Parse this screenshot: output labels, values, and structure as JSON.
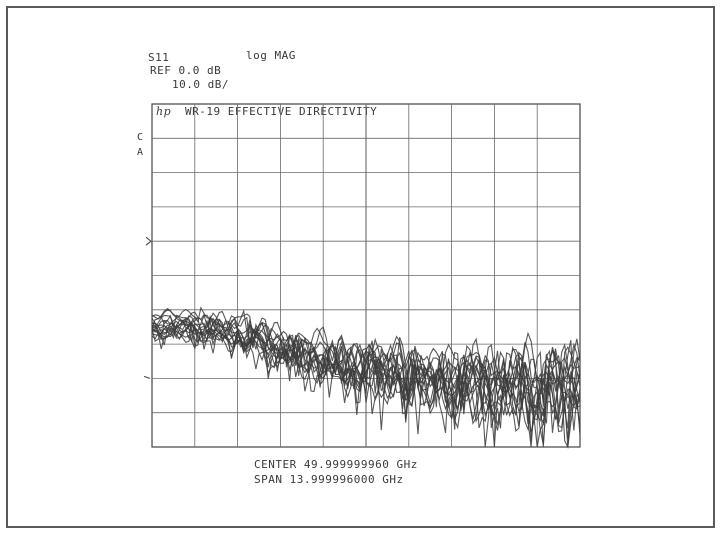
{
  "header": {
    "param": "S11",
    "format": "log MAG",
    "ref": "REF 0.0 dB",
    "scale": "10.0 dB/"
  },
  "chart_data": {
    "type": "line",
    "title": "WR-19 EFFECTIVE DIRECTIVITY",
    "logo": "hp",
    "grid": true,
    "x_divisions": 10,
    "y_divisions": 10,
    "ylim": [
      -100,
      0
    ],
    "y_unit": "dB",
    "xlim_ghz": [
      43.0,
      57.0
    ],
    "center": "CENTER 49.999999960 GHz",
    "span": "SPAN 13.999996000 GHz",
    "channel_markers": [
      "C",
      "A"
    ],
    "series_count": 16,
    "series_level_db": {
      "start_range": [
        -62,
        -69
      ],
      "floor_range": [
        -75,
        -97
      ],
      "description_levels_db_by_division": [
        -64,
        -64,
        -66,
        -70,
        -74,
        -76,
        -78,
        -80,
        -80,
        -82,
        -80
      ]
    }
  }
}
